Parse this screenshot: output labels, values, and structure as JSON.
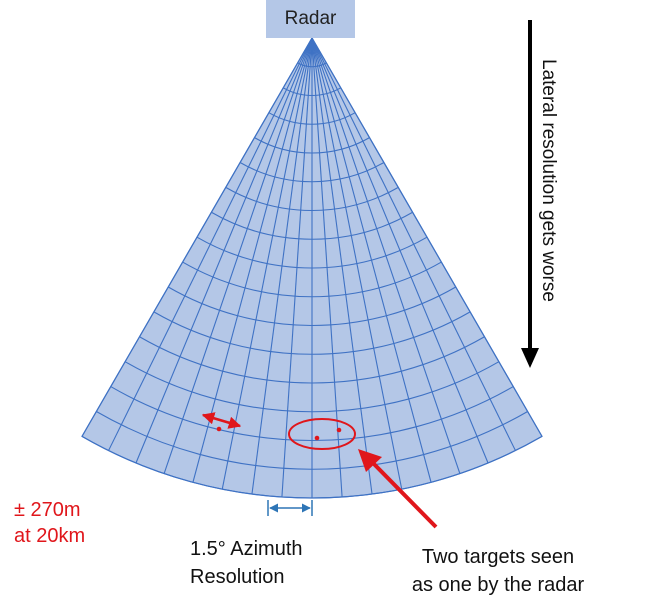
{
  "radar_label": "Radar",
  "lateral_label": "Lateral resolution gets worse",
  "resolution": {
    "line1": "± 270m",
    "line2": "at 20km"
  },
  "azimuth": {
    "line1": "1.5° Azimuth",
    "line2": "Resolution"
  },
  "targets": {
    "line1": "Two targets seen",
    "line2": "as one by the radar"
  },
  "colors": {
    "sector_fill": "#b4c7e7",
    "grid_line": "#3f72c4",
    "annotation_red": "#e0161b",
    "arrow_black": "#000000"
  }
}
